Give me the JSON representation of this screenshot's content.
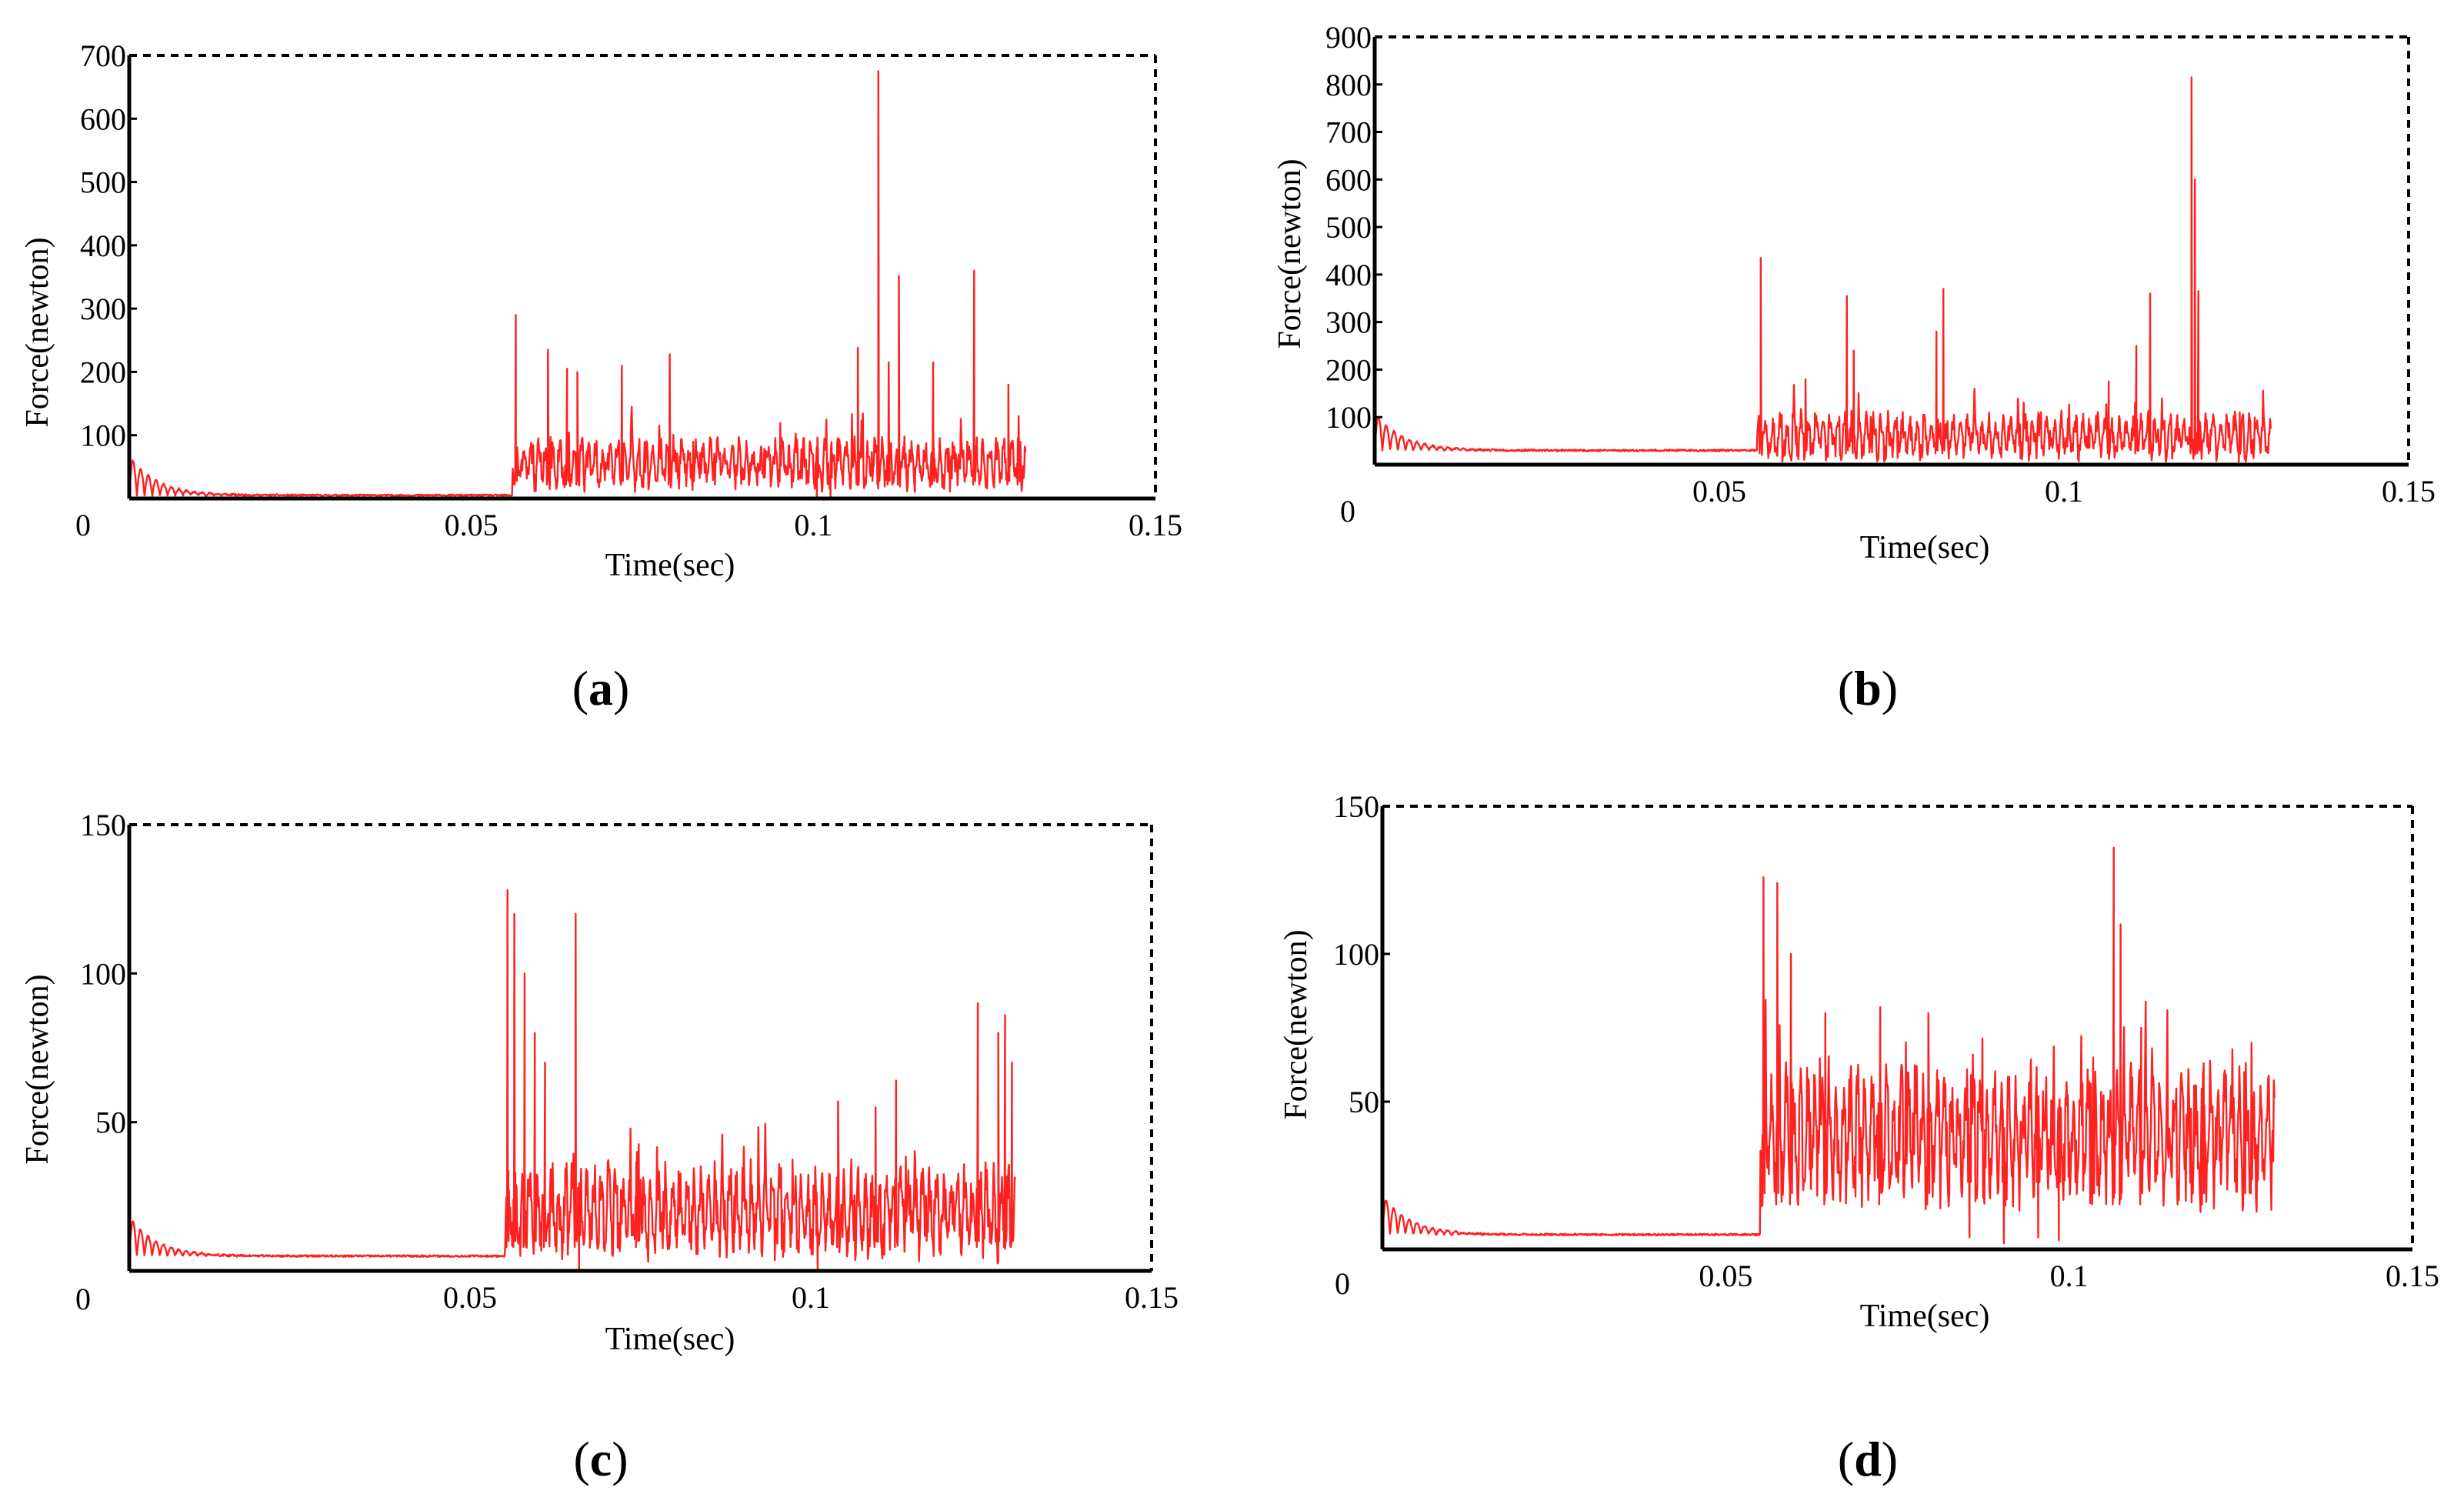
{
  "colors": {
    "series": "#ff2020",
    "axis": "#000000",
    "frame": "#000000",
    "background": "#ffffff"
  },
  "chart_data": [
    {
      "type": "line",
      "panel_label": {
        "open": "(",
        "letter": "a",
        "close": ")"
      },
      "xlabel": "Time(sec)",
      "ylabel": "Force(newton)",
      "xlim": [
        0,
        0.15
      ],
      "ylim": [
        0,
        700
      ],
      "x_ticks": [
        0,
        0.05,
        0.1,
        0.15
      ],
      "x_tick_labels": [
        "0",
        "0.05",
        "0.1",
        "0.15"
      ],
      "y_ticks": [
        100,
        200,
        300,
        400,
        500,
        600,
        700
      ],
      "y_tick_labels": [
        "100",
        "200",
        "300",
        "400",
        "500",
        "600",
        "700"
      ],
      "frame": "dashed top and right",
      "series": [
        {
          "name": "Force",
          "baseline": 5,
          "onset": 0.056,
          "end": 0.131,
          "noise_mean": 55,
          "noise_amp": 45,
          "seed": 11,
          "spikes": [
            [
              0.0565,
              290
            ],
            [
              0.0612,
              235
            ],
            [
              0.064,
              205
            ],
            [
              0.0655,
              200
            ],
            [
              0.072,
              210
            ],
            [
              0.079,
              228
            ],
            [
              0.1065,
              238
            ],
            [
              0.1095,
              675
            ],
            [
              0.111,
              215
            ],
            [
              0.1125,
              352
            ],
            [
              0.1175,
              215
            ],
            [
              0.1235,
              360
            ],
            [
              0.1285,
              180
            ],
            [
              0.13,
              130
            ]
          ],
          "dips": [
            [
              0.1005,
              0
            ],
            [
              0.1025,
              3
            ]
          ]
        }
      ]
    },
    {
      "type": "line",
      "panel_label": {
        "open": "(",
        "letter": "b",
        "close": ")"
      },
      "xlabel": "Time(sec)",
      "ylabel": "Force(newton)",
      "xlim": [
        0,
        0.15
      ],
      "ylim": [
        0,
        900
      ],
      "x_ticks": [
        0,
        0.05,
        0.1,
        0.15
      ],
      "x_tick_labels": [
        "0",
        "0.05",
        "0.1",
        "0.15"
      ],
      "y_ticks": [
        100,
        200,
        300,
        400,
        500,
        600,
        700,
        800,
        900
      ],
      "y_tick_labels": [
        "100",
        "200",
        "300",
        "400",
        "500",
        "600",
        "700",
        "800",
        "900"
      ],
      "frame": "dashed top and right",
      "series": [
        {
          "name": "Force",
          "baseline": 30,
          "onset": 0.0555,
          "end": 0.13,
          "noise_mean": 60,
          "noise_amp": 55,
          "seed": 23,
          "spikes": [
            [
              0.056,
              435
            ],
            [
              0.0625,
              180
            ],
            [
              0.0685,
              355
            ],
            [
              0.0695,
              240
            ],
            [
              0.0815,
              280
            ],
            [
              0.0825,
              370
            ],
            [
              0.1065,
              175
            ],
            [
              0.1105,
              250
            ],
            [
              0.1125,
              360
            ],
            [
              0.1185,
              815
            ],
            [
              0.119,
              600
            ],
            [
              0.1195,
              365
            ],
            [
              0.1255,
              110
            ]
          ],
          "dips": [
            [
              0.1035,
              35
            ]
          ]
        }
      ]
    },
    {
      "type": "line",
      "panel_label": {
        "open": "(",
        "letter": "c",
        "close": ")"
      },
      "xlabel": "Time(sec)",
      "ylabel": "Force(newton)",
      "xlim": [
        0,
        0.15
      ],
      "ylim": [
        0,
        150
      ],
      "x_ticks": [
        0,
        0.05,
        0.1,
        0.15
      ],
      "x_tick_labels": [
        "0",
        "0.05",
        "0.1",
        "0.15"
      ],
      "y_ticks": [
        50,
        100,
        150
      ],
      "y_tick_labels": [
        "50",
        "100",
        "150"
      ],
      "frame": "dashed top and right",
      "series": [
        {
          "name": "Force",
          "baseline": 5,
          "onset": 0.055,
          "end": 0.13,
          "noise_mean": 20,
          "noise_amp": 18,
          "seed": 37,
          "spikes": [
            [
              0.0555,
              128
            ],
            [
              0.0565,
              120
            ],
            [
              0.058,
              100
            ],
            [
              0.0595,
              80
            ],
            [
              0.061,
              70
            ],
            [
              0.0655,
              120
            ],
            [
              0.0745,
              40
            ],
            [
              0.104,
              57
            ],
            [
              0.1095,
              55
            ],
            [
              0.1125,
              64
            ],
            [
              0.1245,
              90
            ],
            [
              0.1275,
              80
            ],
            [
              0.1285,
              86
            ],
            [
              0.1295,
              70
            ]
          ],
          "dips": [
            [
              0.066,
              0
            ],
            [
              0.101,
              0
            ]
          ]
        }
      ]
    },
    {
      "type": "line",
      "panel_label": {
        "open": "(",
        "letter": "d",
        "close": ")"
      },
      "xlabel": "Time(sec)",
      "ylabel": "Force(newton)",
      "xlim": [
        0,
        0.15
      ],
      "ylim": [
        0,
        150
      ],
      "x_ticks": [
        0,
        0.05,
        0.1,
        0.15
      ],
      "x_tick_labels": [
        "0",
        "0.05",
        "0.1",
        "0.15"
      ],
      "y_ticks": [
        50,
        100,
        150
      ],
      "y_tick_labels": [
        "50",
        "100",
        "150"
      ],
      "frame": "dashed top and right",
      "series": [
        {
          "name": "Force",
          "baseline": 5,
          "onset": 0.055,
          "end": 0.13,
          "noise_mean": 38,
          "noise_amp": 26,
          "seed": 41,
          "spikes": [
            [
              0.0555,
              126
            ],
            [
              0.0575,
              124
            ],
            [
              0.0595,
              100
            ],
            [
              0.0645,
              80
            ],
            [
              0.0725,
              82
            ],
            [
              0.0795,
              80
            ],
            [
              0.1035,
              65
            ],
            [
              0.1065,
              136
            ],
            [
              0.1075,
              110
            ],
            [
              0.1105,
              75
            ],
            [
              0.1195,
              60
            ],
            [
              0.1255,
              60
            ]
          ],
          "dips": [
            [
              0.0855,
              4
            ],
            [
              0.0905,
              2
            ],
            [
              0.0955,
              4
            ],
            [
              0.0985,
              3
            ]
          ]
        }
      ]
    }
  ]
}
